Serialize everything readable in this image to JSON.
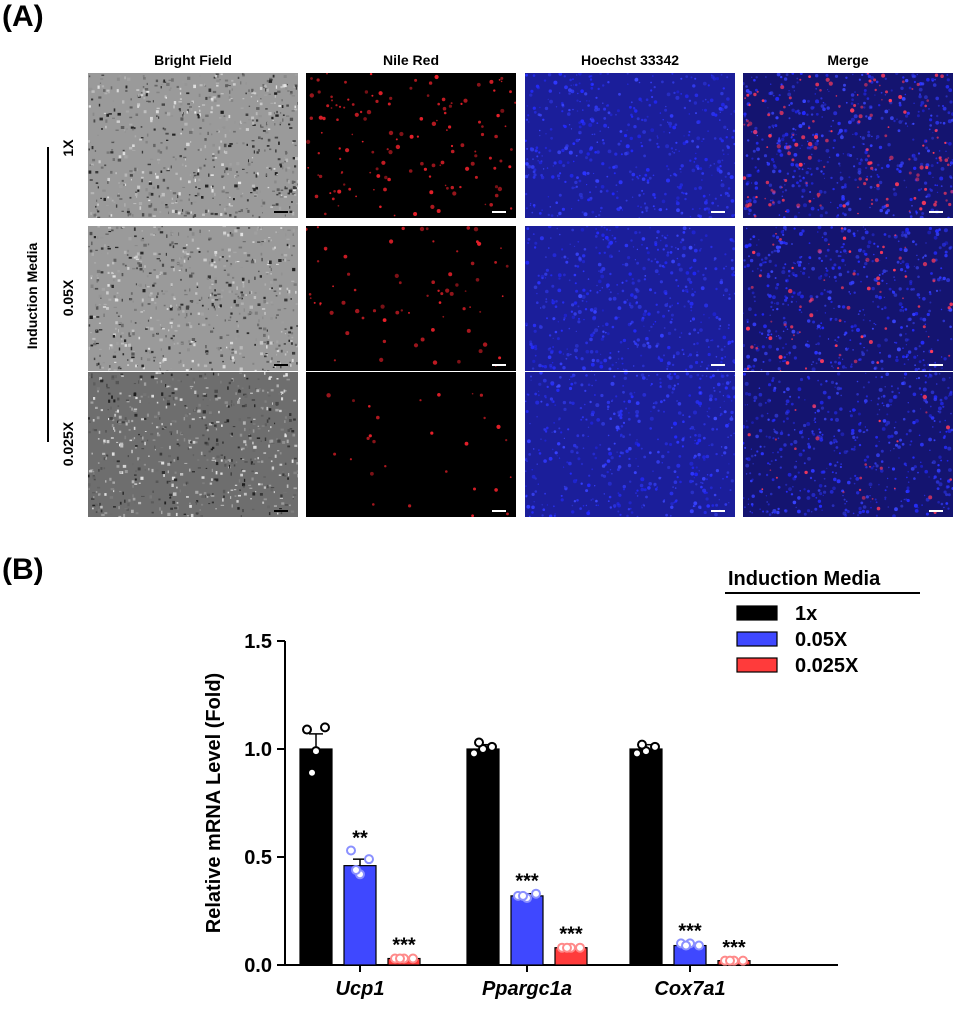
{
  "panel_a": {
    "label": "(A)",
    "columns": [
      "Bright Field",
      "Nile Red",
      "Hoechst 33342",
      "Merge"
    ],
    "group_label": "Induction Media",
    "rows": [
      "1X",
      "0.05X",
      "0.025X"
    ],
    "colors": {
      "bright": "#8c8c8c",
      "nile": "#e8202a",
      "hoechst": "#2a3cff",
      "merge": "#7a2ab8"
    }
  },
  "panel_b": {
    "label": "(B)"
  },
  "chart_data": {
    "type": "bar",
    "categories": [
      "Ucp1",
      "Ppargc1a",
      "Cox7a1"
    ],
    "ylabel": "Relative mRNA Level (Fold)",
    "ylim": [
      0,
      1.5
    ],
    "yticks": [
      "0.0",
      "0.5",
      "1.0",
      "1.5"
    ],
    "legend_title": "Induction Media",
    "legend_position": "top-right",
    "series": [
      {
        "name": "1x",
        "color": "#000000",
        "values": [
          1.0,
          1.0,
          1.0
        ],
        "errors": [
          0.07,
          0.02,
          0.02
        ],
        "points": [
          [
            1.09,
            1.1,
            0.99,
            0.89
          ],
          [
            0.98,
            1.01,
            1.0,
            1.03
          ],
          [
            0.98,
            1.01,
            0.99,
            1.02
          ]
        ],
        "labels": [
          "",
          "",
          ""
        ]
      },
      {
        "name": "0.05X",
        "color": "#3f48ff",
        "values": [
          0.46,
          0.32,
          0.09
        ],
        "errors": [
          0.03,
          0.01,
          0.01
        ],
        "points": [
          [
            0.53,
            0.49,
            0.42,
            0.44
          ],
          [
            0.32,
            0.33,
            0.31,
            0.32
          ],
          [
            0.1,
            0.09,
            0.1,
            0.09
          ]
        ],
        "labels": [
          "**",
          "***",
          "***"
        ]
      },
      {
        "name": "0.025X",
        "color": "#ff3b3b",
        "values": [
          0.03,
          0.08,
          0.02
        ],
        "errors": [
          0.005,
          0.005,
          0.003
        ],
        "points": [
          [
            0.03,
            0.03,
            0.03,
            0.03
          ],
          [
            0.08,
            0.08,
            0.08,
            0.08
          ],
          [
            0.02,
            0.02,
            0.02,
            0.02
          ]
        ],
        "labels": [
          "***",
          "***",
          "***"
        ]
      }
    ]
  }
}
